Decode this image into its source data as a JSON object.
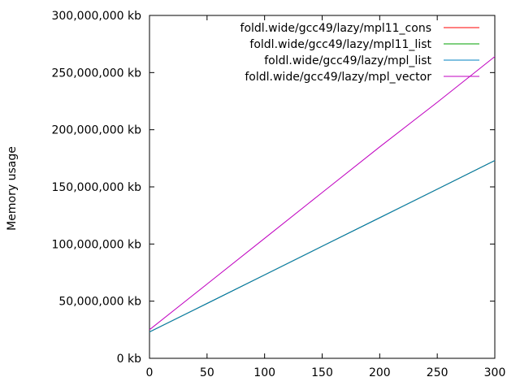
{
  "chart_data": {
    "type": "line",
    "xlabel": "",
    "ylabel": "Memory usage",
    "xlim": [
      0,
      300
    ],
    "ylim": [
      0,
      300000000
    ],
    "x_ticks": [
      0,
      50,
      100,
      150,
      200,
      250,
      300
    ],
    "y_ticks": [
      0,
      50000000,
      100000000,
      150000000,
      200000000,
      250000000,
      300000000
    ],
    "y_tick_labels": [
      "0 kb",
      "50,000,000 kb",
      "100,000,000 kb",
      "150,000,000 kb",
      "200,000,000 kb",
      "250,000,000 kb",
      "300,000,000 kb"
    ],
    "x_tick_labels": [
      "0",
      "50",
      "100",
      "150",
      "200",
      "250",
      "300"
    ],
    "grid": false,
    "legend_position": "top-right",
    "series": [
      {
        "name": "foldl.wide/gcc49/lazy/mpl11_cons",
        "color": "#ff0000",
        "x": [
          0,
          50,
          100,
          150,
          200,
          250,
          300
        ],
        "y": [
          23000000,
          48000000,
          73000000,
          98000000,
          123000000,
          148000000,
          173000000
        ]
      },
      {
        "name": "foldl.wide/gcc49/lazy/mpl11_list",
        "color": "#00a000",
        "x": [
          0,
          50,
          100,
          150,
          200,
          250,
          300
        ],
        "y": [
          23000000,
          48000000,
          73000000,
          98000000,
          123000000,
          148000000,
          173000000
        ]
      },
      {
        "name": "foldl.wide/gcc49/lazy/mpl_list",
        "color": "#0080c0",
        "x": [
          0,
          50,
          100,
          150,
          200,
          250,
          300
        ],
        "y": [
          23000000,
          48000000,
          73000000,
          98000000,
          123000000,
          148000000,
          173000000
        ]
      },
      {
        "name": "foldl.wide/gcc49/lazy/mpl_vector",
        "color": "#c000c0",
        "x": [
          0,
          50,
          100,
          150,
          200,
          250,
          300
        ],
        "y": [
          25000000,
          65000000,
          105000000,
          145000000,
          185000000,
          224000000,
          264000000
        ]
      }
    ]
  }
}
